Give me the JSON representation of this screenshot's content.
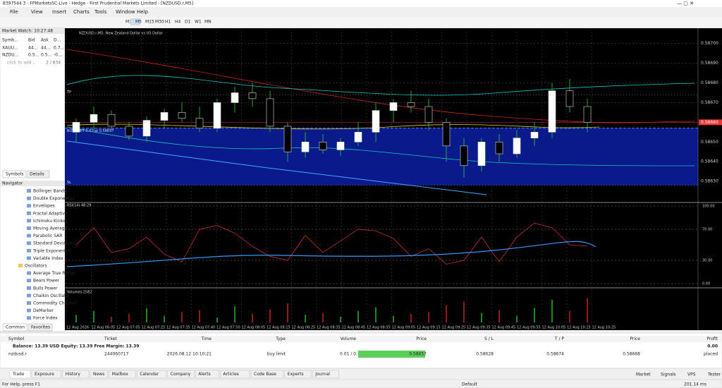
{
  "window": {
    "title": "8397544 3 - FPMarketsSC-Live - Hedge - First Prudential Markets Limited - [NZDUSD.r,M5]",
    "menu": [
      "File",
      "View",
      "Insert",
      "Charts",
      "Tools",
      "Window",
      "Help"
    ],
    "timeframes": [
      "M1",
      "M5",
      "M15",
      "M30",
      "H1",
      "H4",
      "D1",
      "W1",
      "MN"
    ]
  },
  "market_watch": {
    "title": "Market Watch: 10:27:48",
    "headers": [
      "Symb...",
      "Bid",
      "Ask",
      "D..."
    ],
    "rows": [
      [
        "XAUU...",
        "44...",
        "44...",
        "0.7..."
      ],
      [
        "NZDU...",
        "0.5...",
        "0.5...",
        "-0...."
      ]
    ],
    "add": "click to add...",
    "count": "2 / 834",
    "tabs": [
      "Symbols",
      "Details"
    ]
  },
  "navigator": {
    "title": "Navigator",
    "items": [
      "Bollinger Bands",
      "Double Exponential",
      "Envelopes",
      "Fractal Adaptive",
      "Ichimoku Kinko",
      "Moving Average",
      "Parabolic SAR",
      "Standard Deviation",
      "Triple Exponential",
      "Variable Index",
      "Oscillators",
      "Average True Range",
      "Bears Power",
      "Bulls Power",
      "Chaikin Oscillator",
      "Commodity Channel",
      "DeMarker",
      "Force Index"
    ],
    "tabs": [
      "Common",
      "Favorites"
    ]
  },
  "chart": {
    "title": "NZDUSD.r,M5: New Zealand Dollar vs US Dollar",
    "ylim": [
      0.5862,
      0.58706
    ],
    "yticks": [
      {
        "value": 0.587,
        "label": "0.58700"
      },
      {
        "value": 0.5869,
        "label": "0.58690"
      },
      {
        "value": 0.5868,
        "label": "0.58680"
      },
      {
        "value": 0.5867,
        "label": "0.58670"
      },
      {
        "value": 0.5865,
        "label": "0.58650"
      },
      {
        "value": 0.5864,
        "label": "0.58640"
      },
      {
        "value": 0.5863,
        "label": "0.58630"
      }
    ],
    "bid": {
      "value": 0.5866,
      "label": "0.58660"
    },
    "order": {
      "label": "BUY LIMIT 0.01 at 0.58657",
      "price": 0.58657,
      "tp": 0.58674,
      "sl": 0.58628,
      "tp_label": "TP",
      "sl_label": "SL"
    },
    "candles": [
      {
        "open": 0.58655,
        "high": 0.58662,
        "low": 0.5865,
        "close": 0.5866
      },
      {
        "open": 0.5866,
        "high": 0.58668,
        "low": 0.58655,
        "close": 0.58664
      },
      {
        "open": 0.58664,
        "high": 0.58666,
        "low": 0.58656,
        "close": 0.58658
      },
      {
        "open": 0.58658,
        "high": 0.5866,
        "low": 0.58651,
        "close": 0.58653
      },
      {
        "open": 0.58653,
        "high": 0.58663,
        "low": 0.5865,
        "close": 0.58661
      },
      {
        "open": 0.58661,
        "high": 0.58667,
        "low": 0.58657,
        "close": 0.58665
      },
      {
        "open": 0.58665,
        "high": 0.5867,
        "low": 0.5866,
        "close": 0.58662
      },
      {
        "open": 0.58662,
        "high": 0.58668,
        "low": 0.58655,
        "close": 0.58657
      },
      {
        "open": 0.58657,
        "high": 0.58672,
        "low": 0.58655,
        "close": 0.5867
      },
      {
        "open": 0.5867,
        "high": 0.58678,
        "low": 0.58665,
        "close": 0.58675
      },
      {
        "open": 0.58675,
        "high": 0.5868,
        "low": 0.58668,
        "close": 0.58672
      },
      {
        "open": 0.58672,
        "high": 0.58676,
        "low": 0.58655,
        "close": 0.58658
      },
      {
        "open": 0.58658,
        "high": 0.5866,
        "low": 0.5864,
        "close": 0.58645
      },
      {
        "open": 0.58645,
        "high": 0.58655,
        "low": 0.58642,
        "close": 0.5865
      },
      {
        "open": 0.5865,
        "high": 0.58654,
        "low": 0.58644,
        "close": 0.58646
      },
      {
        "open": 0.58646,
        "high": 0.58652,
        "low": 0.58643,
        "close": 0.5865
      },
      {
        "open": 0.5865,
        "high": 0.5866,
        "low": 0.58648,
        "close": 0.58655
      },
      {
        "open": 0.58655,
        "high": 0.5867,
        "low": 0.5865,
        "close": 0.58666
      },
      {
        "open": 0.58666,
        "high": 0.58672,
        "low": 0.5866,
        "close": 0.5867
      },
      {
        "open": 0.5867,
        "high": 0.58676,
        "low": 0.58665,
        "close": 0.58668
      },
      {
        "open": 0.58668,
        "high": 0.58672,
        "low": 0.58656,
        "close": 0.5866
      },
      {
        "open": 0.5866,
        "high": 0.58662,
        "low": 0.5864,
        "close": 0.58648
      },
      {
        "open": 0.58648,
        "high": 0.58652,
        "low": 0.58632,
        "close": 0.58638
      },
      {
        "open": 0.58638,
        "high": 0.58652,
        "low": 0.58635,
        "close": 0.5865
      },
      {
        "open": 0.5865,
        "high": 0.58654,
        "low": 0.5864,
        "close": 0.58644
      },
      {
        "open": 0.58644,
        "high": 0.58656,
        "low": 0.58642,
        "close": 0.58652
      },
      {
        "open": 0.58652,
        "high": 0.5866,
        "low": 0.58648,
        "close": 0.58655
      },
      {
        "open": 0.58655,
        "high": 0.5868,
        "low": 0.58652,
        "close": 0.58676
      },
      {
        "open": 0.58676,
        "high": 0.58682,
        "low": 0.58665,
        "close": 0.58668
      },
      {
        "open": 0.58668,
        "high": 0.58672,
        "low": 0.58655,
        "close": 0.5866
      }
    ],
    "rsi": {
      "title": "RSI(14) 48.29",
      "ylim": [
        0,
        100
      ],
      "yticks": [
        {
          "value": 100,
          "label": "100.00"
        },
        {
          "value": 70,
          "label": "70.00"
        },
        {
          "value": 30,
          "label": "30.00"
        },
        {
          "value": 0,
          "label": "0.00"
        }
      ],
      "values": [
        50,
        72,
        40,
        45,
        60,
        38,
        28,
        70,
        75,
        65,
        48,
        35,
        30,
        62,
        40,
        55,
        70,
        68,
        58,
        35,
        45,
        25,
        30,
        60,
        28,
        60,
        78,
        72,
        50,
        48.29
      ]
    },
    "volumes": {
      "title": "Volumes 2582",
      "ylim": [
        0,
        3000
      ],
      "values": [
        800,
        1200,
        600,
        900,
        1500,
        700,
        1100,
        1300,
        500,
        1700,
        900,
        1400,
        2000,
        800,
        1000,
        600,
        1200,
        1600,
        700,
        900,
        1100,
        1800,
        2200,
        1000,
        1300,
        700,
        1500,
        2400,
        1200,
        2582
      ]
    },
    "time_labels": [
      "12 Aug 2026",
      "12 Aug 06:05",
      "12 Aug 07:05",
      "12 Aug 07:25",
      "12 Aug 07:35",
      "12 Aug 07:40",
      "12 Aug 07:50",
      "12 Aug 08:05",
      "12 Aug 08:15",
      "12 Aug 08:25",
      "12 Aug 08:35",
      "12 Aug 08:45",
      "12 Aug 08:55",
      "12 Aug 09:05",
      "12 Aug 09:15",
      "12 Aug 09:25",
      "12 Aug 09:35",
      "12 Aug 09:45",
      "12 Aug 09:55",
      "12 Aug 10:05",
      "12 Aug 10:15",
      "12 Aug 10:25"
    ]
  },
  "terminal": {
    "headers": [
      "Symbol",
      "Ticket",
      "Time",
      "Type",
      "Volume",
      "Price",
      "S / L",
      "T / P",
      "Price",
      "Profit"
    ],
    "balance": "Balance: 13.39 USD  Equity: 13.39  Free Margin: 13.39",
    "balance_profit": "0.00",
    "row": [
      "nzdusd.r",
      "244060717",
      "2026.08.12 10:10:21",
      "buy limit",
      "0.01 / 0",
      "0.58657",
      "0.58628",
      "0.58674",
      "0.58668",
      "placed"
    ],
    "tabs": [
      "Trade",
      "Exposure",
      "History",
      "News",
      "Mailbox",
      "Calendar",
      "Company",
      "Alerts",
      "Articles",
      "Code Base",
      "Experts",
      "Journal"
    ]
  },
  "status": {
    "help": "For Help, press F1",
    "profile": "Default",
    "market": "Market",
    "signals": "Signals",
    "vps": "VPS",
    "tester": "Tester",
    "ping": "201.14 ms"
  }
}
